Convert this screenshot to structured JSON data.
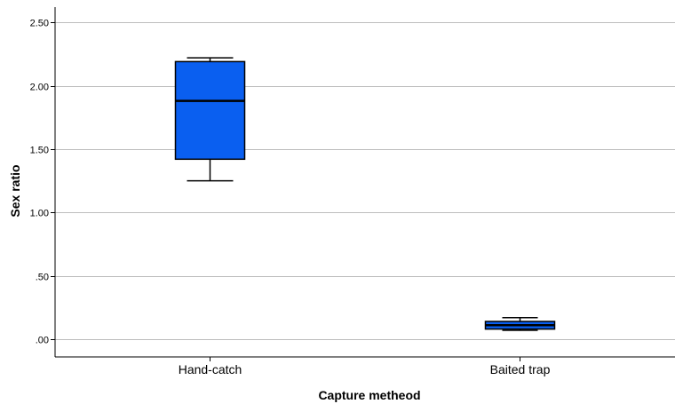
{
  "chart_data": {
    "type": "boxplot",
    "xlabel": "Capture metheod",
    "ylabel": "Sex ratio",
    "ylim": [
      -0.14,
      2.62
    ],
    "yticks": [
      0.0,
      0.5,
      1.0,
      1.5,
      2.0,
      2.5
    ],
    "ytick_labels": [
      ".00",
      ".50",
      "1.00",
      "1.50",
      "2.00",
      "2.50"
    ],
    "grid": true,
    "categories": [
      "Hand-catch",
      "Baited trap"
    ],
    "boxes": [
      {
        "category": "Hand-catch",
        "whisker_low": 1.25,
        "q1": 1.42,
        "median": 1.88,
        "q3": 2.19,
        "whisker_high": 2.22
      },
      {
        "category": "Baited trap",
        "whisker_low": 0.07,
        "q1": 0.08,
        "median": 0.11,
        "q3": 0.14,
        "whisker_high": 0.17
      }
    ],
    "colors": {
      "box_fill": "#0a5ff0",
      "box_stroke": "#000000",
      "grid": "#bdbdbd",
      "axis": "#000000"
    }
  }
}
